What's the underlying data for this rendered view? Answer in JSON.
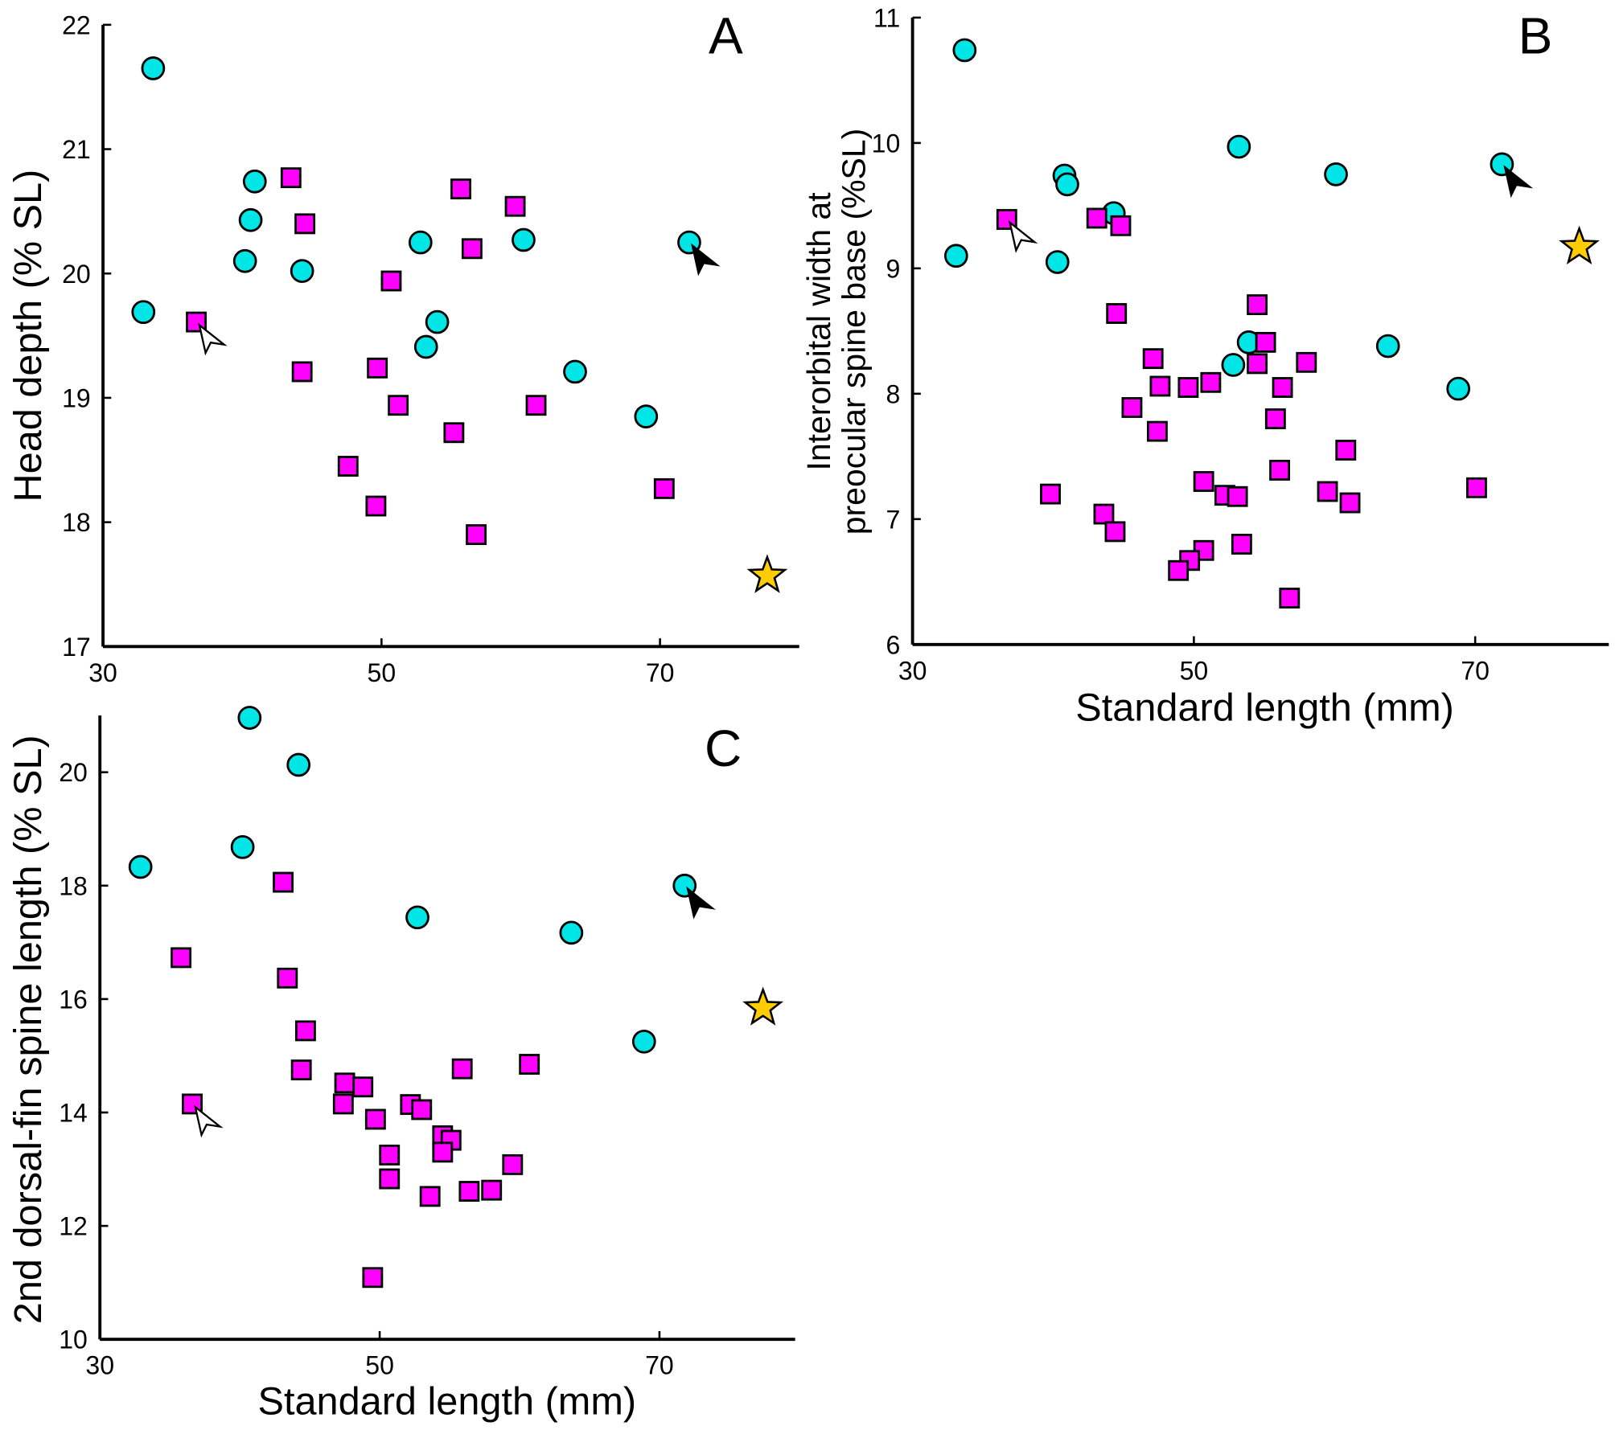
{
  "colors": {
    "circle": "#00e5e5",
    "square": "#ff00ff",
    "star": "#ffcc00",
    "outline": "#000000"
  },
  "chart_data": [
    {
      "type": "scatter",
      "panel": "A",
      "xlabel": "",
      "ylabel": "Head depth (% SL)",
      "xlim": [
        30,
        80
      ],
      "ylim": [
        17,
        22
      ],
      "xticks": [
        30,
        50,
        70
      ],
      "yticks": [
        17,
        18,
        19,
        20,
        21,
        22
      ],
      "series": [
        {
          "marker": "circle",
          "points": [
            [
              33.6,
              21.65
            ],
            [
              40.9,
              20.74
            ],
            [
              40.6,
              20.43
            ],
            [
              40.2,
              20.1
            ],
            [
              44.3,
              20.02
            ],
            [
              32.9,
              19.69
            ],
            [
              52.8,
              20.25
            ],
            [
              54.0,
              19.61
            ],
            [
              53.2,
              19.41
            ],
            [
              60.2,
              20.27
            ],
            [
              63.9,
              19.21
            ],
            [
              69.0,
              18.85
            ],
            [
              72.1,
              20.25
            ]
          ]
        },
        {
          "marker": "square",
          "points": [
            [
              43.5,
              20.77
            ],
            [
              44.5,
              20.4
            ],
            [
              36.7,
              19.61
            ],
            [
              44.3,
              19.21
            ],
            [
              55.7,
              20.68
            ],
            [
              56.5,
              20.2
            ],
            [
              59.6,
              20.54
            ],
            [
              50.7,
              19.94
            ],
            [
              49.7,
              19.24
            ],
            [
              51.2,
              18.94
            ],
            [
              61.1,
              18.94
            ],
            [
              55.2,
              18.72
            ],
            [
              47.6,
              18.45
            ],
            [
              49.6,
              18.13
            ],
            [
              56.8,
              17.9
            ],
            [
              70.3,
              18.27
            ]
          ]
        },
        {
          "marker": "star",
          "points": [
            [
              77.7,
              17.57
            ]
          ]
        }
      ],
      "annotations": [
        {
          "type": "white-arrow",
          "x": 36.7,
          "y": 19.61
        },
        {
          "type": "black-arrow",
          "x": 72.1,
          "y": 20.25
        }
      ]
    },
    {
      "type": "scatter",
      "panel": "B",
      "xlabel": "Standard length (mm)",
      "ylabel": [
        "Interorbital width at",
        "preocular spine base (%SL)"
      ],
      "xlim": [
        30,
        79.5
      ],
      "ylim": [
        6,
        11
      ],
      "xticks": [
        30,
        50,
        70
      ],
      "yticks": [
        6,
        7,
        8,
        9,
        10,
        11
      ],
      "series": [
        {
          "marker": "circle",
          "points": [
            [
              33.7,
              10.74
            ],
            [
              33.1,
              9.1
            ],
            [
              40.8,
              9.74
            ],
            [
              41.0,
              9.67
            ],
            [
              40.3,
              9.05
            ],
            [
              44.3,
              9.44
            ],
            [
              53.2,
              9.97
            ],
            [
              60.1,
              9.75
            ],
            [
              71.9,
              9.83
            ],
            [
              53.9,
              8.41
            ],
            [
              52.8,
              8.23
            ],
            [
              63.8,
              8.38
            ],
            [
              68.8,
              8.04
            ]
          ]
        },
        {
          "marker": "square",
          "points": [
            [
              36.7,
              9.39
            ],
            [
              43.1,
              9.4
            ],
            [
              44.8,
              9.34
            ],
            [
              44.5,
              8.64
            ],
            [
              54.5,
              8.71
            ],
            [
              55.1,
              8.41
            ],
            [
              54.5,
              8.24
            ],
            [
              58.0,
              8.25
            ],
            [
              47.1,
              8.28
            ],
            [
              47.6,
              8.06
            ],
            [
              49.6,
              8.05
            ],
            [
              51.2,
              8.09
            ],
            [
              56.3,
              8.05
            ],
            [
              45.6,
              7.89
            ],
            [
              47.4,
              7.7
            ],
            [
              55.8,
              7.8
            ],
            [
              60.8,
              7.55
            ],
            [
              56.1,
              7.39
            ],
            [
              39.8,
              7.2
            ],
            [
              50.7,
              7.3
            ],
            [
              52.2,
              7.19
            ],
            [
              53.1,
              7.18
            ],
            [
              59.5,
              7.22
            ],
            [
              61.1,
              7.13
            ],
            [
              70.1,
              7.25
            ],
            [
              43.6,
              7.04
            ],
            [
              44.4,
              6.9
            ],
            [
              53.4,
              6.8
            ],
            [
              50.7,
              6.75
            ],
            [
              49.7,
              6.67
            ],
            [
              48.9,
              6.59
            ],
            [
              56.8,
              6.37
            ]
          ]
        },
        {
          "marker": "star",
          "points": [
            [
              77.4,
              9.17
            ]
          ]
        }
      ],
      "annotations": [
        {
          "type": "white-arrow",
          "x": 36.7,
          "y": 9.39
        },
        {
          "type": "black-arrow",
          "x": 71.9,
          "y": 9.83
        }
      ]
    },
    {
      "type": "scatter",
      "panel": "C",
      "xlabel": "Standard length (mm)",
      "ylabel": "2nd dorsal-fin spine length (% SL)",
      "xlim": [
        30,
        79.7
      ],
      "ylim": [
        10,
        21
      ],
      "xticks": [
        30,
        50,
        70
      ],
      "yticks": [
        10,
        12,
        14,
        16,
        18,
        20
      ],
      "series": [
        {
          "marker": "circle",
          "points": [
            [
              40.7,
              20.96
            ],
            [
              44.2,
              20.13
            ],
            [
              32.9,
              18.33
            ],
            [
              40.2,
              18.68
            ],
            [
              52.7,
              17.44
            ],
            [
              71.8,
              18.0
            ],
            [
              63.7,
              17.17
            ],
            [
              68.9,
              15.25
            ]
          ]
        },
        {
          "marker": "square",
          "points": [
            [
              43.1,
              18.06
            ],
            [
              35.8,
              16.73
            ],
            [
              43.4,
              16.37
            ],
            [
              44.7,
              15.44
            ],
            [
              44.4,
              14.75
            ],
            [
              36.6,
              14.15
            ],
            [
              47.5,
              14.52
            ],
            [
              48.8,
              14.45
            ],
            [
              47.4,
              14.15
            ],
            [
              52.2,
              14.14
            ],
            [
              53.0,
              14.05
            ],
            [
              49.7,
              13.88
            ],
            [
              55.9,
              14.77
            ],
            [
              60.7,
              14.85
            ],
            [
              54.5,
              13.59
            ],
            [
              55.1,
              13.51
            ],
            [
              54.5,
              13.3
            ],
            [
              50.7,
              13.25
            ],
            [
              50.7,
              12.83
            ],
            [
              59.5,
              13.08
            ],
            [
              53.6,
              12.52
            ],
            [
              56.4,
              12.61
            ],
            [
              58.0,
              12.63
            ],
            [
              49.5,
              11.09
            ]
          ]
        },
        {
          "marker": "star",
          "points": [
            [
              77.4,
              15.84
            ]
          ]
        }
      ],
      "annotations": [
        {
          "type": "white-arrow",
          "x": 36.6,
          "y": 14.15
        },
        {
          "type": "black-arrow",
          "x": 71.8,
          "y": 18.0
        }
      ]
    }
  ]
}
